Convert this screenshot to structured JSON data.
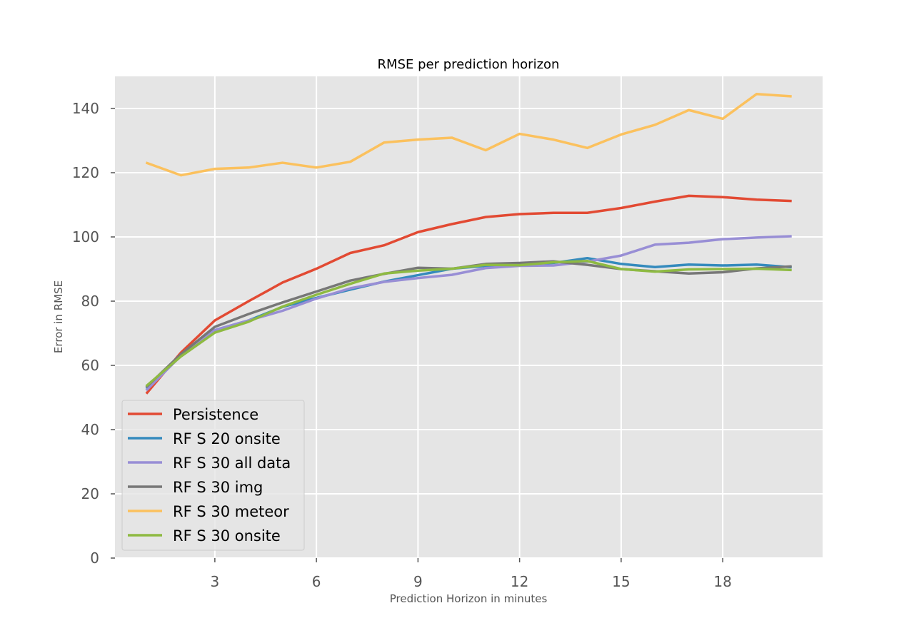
{
  "chart_data": {
    "type": "line",
    "title": "RMSE per prediction horizon",
    "xlabel": "Prediction Horizon in minutes",
    "ylabel": "Error in RMSE",
    "xlim": [
      0.05,
      20.95
    ],
    "ylim": [
      0,
      150
    ],
    "xticks": [
      3,
      6,
      9,
      12,
      15,
      18
    ],
    "yticks": [
      0,
      20,
      40,
      60,
      80,
      100,
      120,
      140
    ],
    "grid": true,
    "legend_position": "lower-left",
    "x": [
      1,
      2,
      3,
      4,
      5,
      6,
      7,
      8,
      9,
      10,
      11,
      12,
      13,
      14,
      15,
      16,
      17,
      18,
      19,
      20
    ],
    "series": [
      {
        "name": "Persistence",
        "color": "#E24A33",
        "values": [
          51.5,
          64,
          74,
          80,
          85.8,
          90.1,
          95,
          97.4,
          101.5,
          104,
          106.2,
          107.1,
          107.5,
          107.5,
          109,
          111,
          112.8,
          112.4,
          111.6,
          111.2
        ]
      },
      {
        "name": "RF S 20 onsite",
        "color": "#348ABD",
        "values": [
          53,
          63.2,
          71,
          74,
          78.2,
          81,
          83.6,
          86.1,
          88.1,
          90.1,
          91,
          91.5,
          91.9,
          93.4,
          91.6,
          90.6,
          91.4,
          91.1,
          91.4,
          90.6
        ]
      },
      {
        "name": "RF S 30 all data",
        "color": "#988ED5",
        "values": [
          52.5,
          63,
          71,
          74,
          77,
          80.8,
          84,
          86,
          87.2,
          88.2,
          90.3,
          91,
          91.1,
          92.3,
          94.2,
          97.6,
          98.2,
          99.3,
          99.8,
          100.2
        ]
      },
      {
        "name": "RF S 30 img",
        "color": "#777777",
        "values": [
          53.5,
          63.5,
          72,
          76,
          79.6,
          83,
          86.4,
          88.5,
          90.4,
          90.1,
          91.6,
          91.9,
          92.4,
          91.3,
          90,
          89.3,
          88.6,
          89,
          90.2,
          90.8
        ]
      },
      {
        "name": "RF S 30 meteor",
        "color": "#FBC15E",
        "values": [
          123,
          119.2,
          121.2,
          121.6,
          123.1,
          121.6,
          123.4,
          129.4,
          130.3,
          130.9,
          127,
          132.1,
          130.3,
          127.7,
          131.9,
          134.9,
          139.5,
          136.8,
          144.5,
          143.8
        ]
      },
      {
        "name": "RF S 30 onsite",
        "color": "#8EBA42",
        "values": [
          53.8,
          62.8,
          70.2,
          73.6,
          78.3,
          82,
          85.4,
          88.6,
          89.5,
          90.1,
          91.3,
          91.2,
          92.1,
          92.5,
          90,
          89.2,
          89.9,
          90,
          90.1,
          89.7
        ]
      }
    ]
  }
}
